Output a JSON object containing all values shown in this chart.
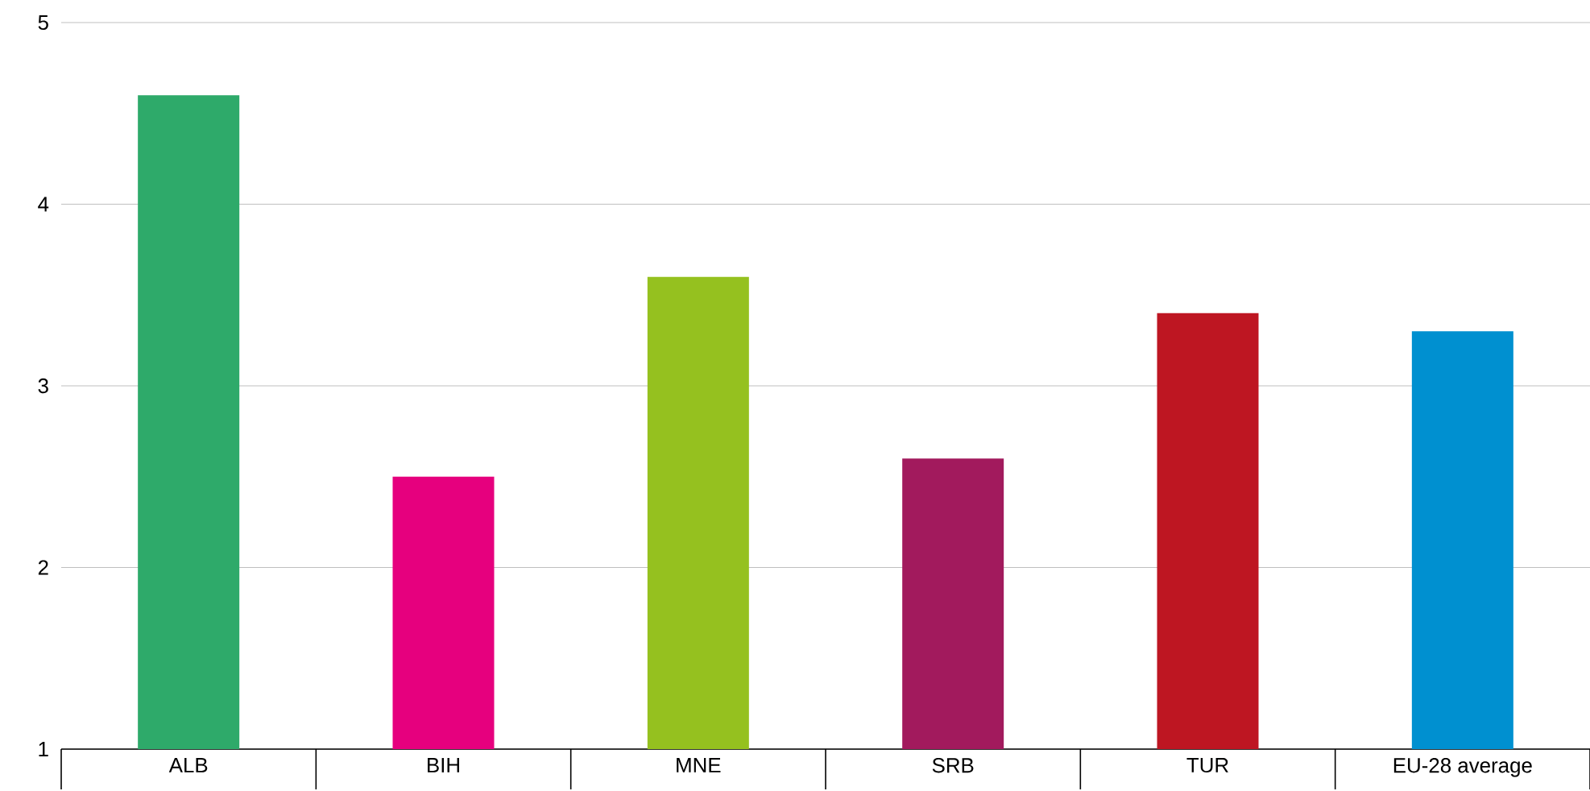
{
  "chart_data": {
    "type": "bar",
    "categories": [
      "ALB",
      "BIH",
      "MNE",
      "SRB",
      "TUR",
      "EU-28 average"
    ],
    "values": [
      4.6,
      2.5,
      3.6,
      2.6,
      3.4,
      3.3
    ],
    "colors": [
      "#2eaa6a",
      "#e6007e",
      "#95c11f",
      "#a21a5d",
      "#be1622",
      "#0090d0"
    ],
    "ylim": [
      1,
      5
    ],
    "yticks": [
      1,
      2,
      3,
      4,
      5
    ],
    "grid": "y"
  }
}
